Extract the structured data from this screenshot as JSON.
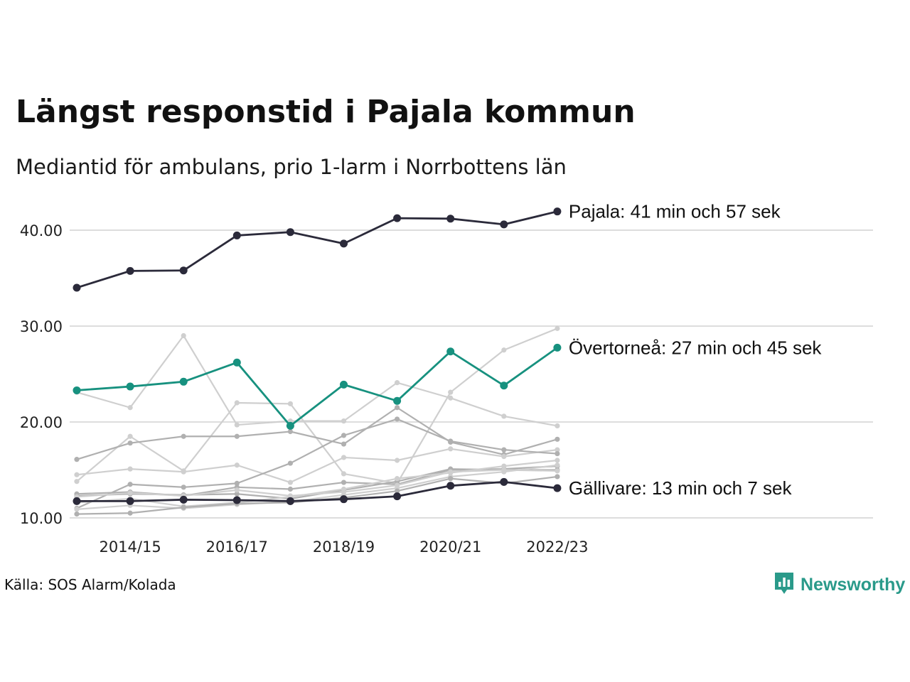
{
  "header": {
    "title": "Längst responstid i Pajala kommun",
    "subtitle": "Mediantid för ambulans, prio 1-larm i Norrbottens län"
  },
  "footer": {
    "source": "Källa: SOS Alarm/Kolada",
    "brand": "Newsworthy"
  },
  "colors": {
    "highlight_dark": "#2b2a3a",
    "highlight_teal": "#17917f",
    "background_light": "#cfcfcf",
    "background_mid": "#b0b0b0",
    "grid": "#dddddd",
    "brand": "#2a9a8a"
  },
  "icons": {
    "brand_logo": "bar-chart-speech-bubble-icon"
  },
  "chart_data": {
    "type": "line",
    "x": [
      "2013/14",
      "2014/15",
      "2015/16",
      "2016/17",
      "2017/18",
      "2018/19",
      "2019/20",
      "2020/21",
      "2021/22",
      "2022/23"
    ],
    "x_tick_labels": [
      "2014/15",
      "2016/17",
      "2018/19",
      "2020/21",
      "2022/23"
    ],
    "x_tick_positions": [
      1,
      3,
      5,
      7,
      9
    ],
    "ylim": [
      10,
      43
    ],
    "y_ticks": [
      10,
      20,
      30,
      40
    ],
    "y_tick_labels": [
      "10.00",
      "20.00",
      "30.00",
      "40.00"
    ],
    "grid": "horizontal",
    "highlighted": [
      {
        "name": "Pajala",
        "values": [
          34.0,
          35.75,
          35.8,
          39.45,
          39.8,
          38.6,
          41.25,
          41.2,
          40.6,
          41.95
        ],
        "color": "#2b2a3a",
        "end_label": "Pajala: 41 min och 57 sek"
      },
      {
        "name": "Övertorneå",
        "values": [
          23.3,
          23.7,
          24.2,
          26.2,
          19.6,
          23.9,
          22.2,
          27.35,
          23.8,
          27.75
        ],
        "color": "#17917f",
        "end_label": "Övertorneå: 27 min och 45 sek"
      },
      {
        "name": "Gällivare",
        "values": [
          11.75,
          11.75,
          11.9,
          11.85,
          11.75,
          11.95,
          12.25,
          13.35,
          13.75,
          13.1
        ],
        "color": "#2b2a3a",
        "end_label": "Gällivare: 13 min och 7 sek"
      }
    ],
    "background_series": [
      {
        "values": [
          23.1,
          21.5,
          29.0,
          19.7,
          20.1,
          20.1,
          24.1,
          22.5,
          20.6,
          19.6
        ],
        "color": "#cfcfcf"
      },
      {
        "values": [
          13.8,
          18.5,
          14.9,
          22.0,
          21.9,
          14.6,
          13.6,
          23.1,
          27.5,
          29.75
        ],
        "color": "#cfcfcf"
      },
      {
        "values": [
          16.1,
          17.8,
          18.5,
          18.5,
          19.0,
          17.7,
          21.5,
          17.9,
          16.6,
          18.2
        ],
        "color": "#b0b0b0"
      },
      {
        "values": [
          14.5,
          15.1,
          14.8,
          15.5,
          13.7,
          16.3,
          16.0,
          17.2,
          16.4,
          17.1
        ],
        "color": "#cfcfcf"
      },
      {
        "values": [
          11.0,
          13.5,
          13.2,
          13.6,
          15.7,
          18.6,
          20.3,
          18.0,
          17.1,
          16.7
        ],
        "color": "#b0b0b0"
      },
      {
        "values": [
          12.5,
          12.7,
          12.3,
          13.2,
          13.0,
          13.7,
          13.5,
          15.0,
          15.1,
          15.4
        ],
        "color": "#b0b0b0"
      },
      {
        "values": [
          12.3,
          12.5,
          12.4,
          12.5,
          12.0,
          12.9,
          13.8,
          15.1,
          15.0,
          15.0
        ],
        "color": "#b0b0b0"
      },
      {
        "values": [
          11.6,
          12.0,
          11.2,
          11.6,
          12.2,
          13.0,
          14.1,
          14.7,
          15.4,
          16.0
        ],
        "color": "#cfcfcf"
      },
      {
        "values": [
          10.9,
          11.3,
          11.0,
          11.4,
          11.7,
          12.4,
          13.1,
          14.3,
          14.8,
          15.5
        ],
        "color": "#cfcfcf"
      },
      {
        "values": [
          10.4,
          10.5,
          11.1,
          11.5,
          11.6,
          12.1,
          12.8,
          14.1,
          13.6,
          14.3
        ],
        "color": "#b0b0b0"
      },
      {
        "values": [
          12.2,
          12.6,
          12.3,
          12.9,
          12.3,
          12.7,
          13.4,
          14.8,
          15.0,
          14.9
        ],
        "color": "#cfcfcf"
      }
    ]
  }
}
